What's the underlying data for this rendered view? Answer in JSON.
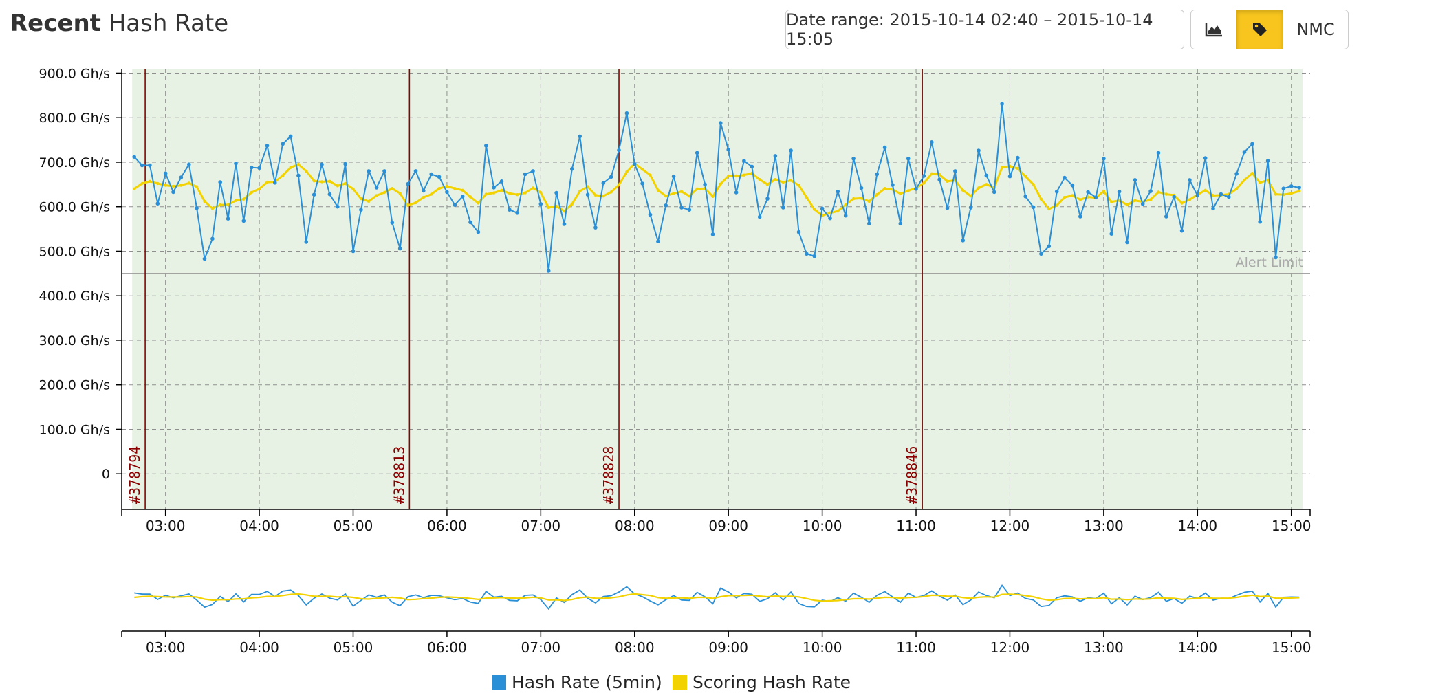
{
  "header": {
    "title_bold": "Recent",
    "title_rest": "Hash Rate",
    "date_range": "Date range: 2015-10-14 02:40 – 2015-10-14 15:05",
    "area_icon": "area-chart-icon",
    "tag_icon": "tag-icon",
    "currency": "NMC"
  },
  "colors": {
    "hash": "#2a8fd6",
    "scoring": "#f2d200",
    "block": "#8b0000",
    "plot_bg": "#e7f2e4",
    "alert": "#999999"
  },
  "chart_data": {
    "type": "line",
    "ylim": [
      -80,
      910
    ],
    "y_ticks": [
      900,
      800,
      700,
      600,
      500,
      400,
      300,
      200,
      100,
      0
    ],
    "y_tick_labels": [
      "900.0 Gh/s",
      "800.0 Gh/s",
      "700.0 Gh/s",
      "600.0 Gh/s",
      "500.0 Gh/s",
      "400.0 Gh/s",
      "300.0 Gh/s",
      "200.0 Gh/s",
      "100.0 Gh/s",
      "0"
    ],
    "x_ticks": [
      "03:00",
      "04:00",
      "05:00",
      "06:00",
      "07:00",
      "08:00",
      "09:00",
      "10:00",
      "11:00",
      "12:00",
      "13:00",
      "14:00",
      "15:00"
    ],
    "x_range": [
      "02:32",
      "15:12"
    ],
    "x_start": "02:40",
    "x_step_minutes": 5,
    "alert_limit": {
      "label": "Alert Limit",
      "value": 450
    },
    "blocks": [
      {
        "label": "#378794",
        "time": "02:47"
      },
      {
        "label": "#378813",
        "time": "05:36"
      },
      {
        "label": "#378828",
        "time": "07:50"
      },
      {
        "label": "#378846",
        "time": "11:04"
      }
    ],
    "series": [
      {
        "name": "Hash Rate (5min)",
        "values": [
          712,
          693,
          693,
          607,
          675,
          633,
          666,
          695,
          597,
          483,
          528,
          655,
          573,
          697,
          568,
          688,
          687,
          737,
          654,
          741,
          758,
          670,
          521,
          627,
          695,
          628,
          600,
          696,
          500,
          593,
          680,
          643,
          680,
          564,
          506,
          651,
          680,
          636,
          673,
          667,
          633,
          604,
          623,
          565,
          543,
          737,
          643,
          657,
          593,
          586,
          673,
          680,
          606,
          456,
          631,
          561,
          685,
          758,
          627,
          553,
          653,
          667,
          727,
          810,
          696,
          652,
          582,
          522,
          603,
          668,
          598,
          593,
          721,
          650,
          538,
          788,
          728,
          632,
          703,
          690,
          577,
          618,
          714,
          598,
          726,
          543,
          494,
          489,
          596,
          574,
          634,
          580,
          708,
          642,
          562,
          673,
          733,
          649,
          562,
          708,
          640,
          669,
          745,
          661,
          597,
          680,
          524,
          598,
          726,
          670,
          633,
          831,
          668,
          710,
          623,
          599,
          494,
          511,
          634,
          665,
          648,
          578,
          633,
          621,
          708,
          539,
          634,
          520,
          660,
          606,
          635,
          721,
          578,
          622,
          546,
          660,
          625,
          709,
          596,
          628,
          622,
          674,
          723,
          741,
          566,
          703,
          486,
          641,
          646,
          643
        ],
        "color": "#2a8fd6"
      },
      {
        "name": "Scoring Hash Rate",
        "values": [
          640,
          652,
          657,
          652,
          648,
          646,
          648,
          653,
          645,
          612,
          596,
          604,
          604,
          614,
          617,
          632,
          640,
          655,
          656,
          670,
          688,
          695,
          680,
          658,
          656,
          657,
          647,
          652,
          640,
          618,
          612,
          625,
          632,
          641,
          630,
          603,
          609,
          621,
          628,
          641,
          646,
          641,
          637,
          622,
          608,
          628,
          631,
          637,
          630,
          627,
          631,
          642,
          632,
          598,
          601,
          590,
          606,
          635,
          645,
          626,
          624,
          633,
          649,
          678,
          697,
          684,
          671,
          637,
          624,
          630,
          634,
          624,
          640,
          641,
          623,
          651,
          669,
          669,
          671,
          675,
          661,
          650,
          661,
          655,
          659,
          648,
          621,
          594,
          580,
          586,
          590,
          604,
          618,
          619,
          612,
          627,
          641,
          639,
          629,
          636,
          642,
          653,
          674,
          672,
          657,
          659,
          637,
          624,
          642,
          650,
          643,
          688,
          691,
          686,
          668,
          650,
          617,
          595,
          603,
          621,
          625,
          616,
          622,
          620,
          635,
          611,
          614,
          604,
          614,
          611,
          616,
          633,
          628,
          626,
          608,
          616,
          627,
          637,
          625,
          626,
          628,
          640,
          660,
          675,
          654,
          660,
          628,
          627,
          630,
          635
        ],
        "color": "#f2d200"
      }
    ]
  }
}
